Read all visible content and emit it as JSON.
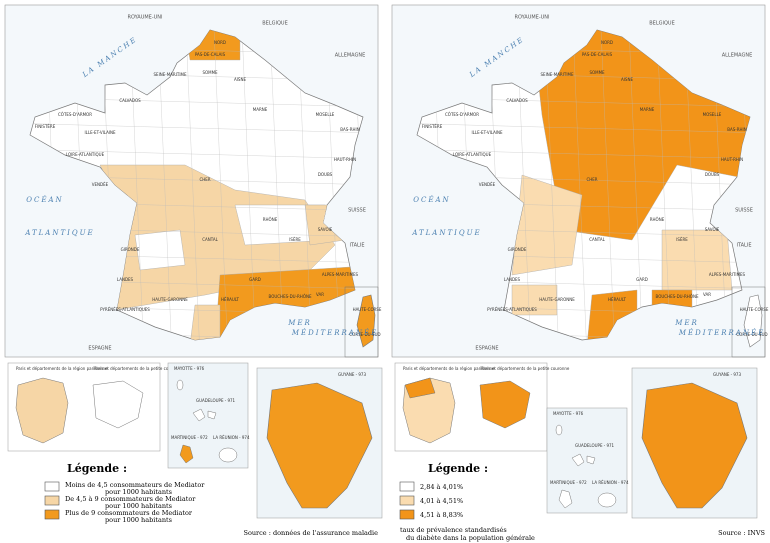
{
  "countries": {
    "uk": "ROYAUME-UNI",
    "be": "BELGIQUE",
    "de": "ALLEMAGNE",
    "ch": "SUISSE",
    "it": "ITALIE",
    "es": "ESPAGNE"
  },
  "seas": {
    "manche": "LA MANCHE",
    "ocean1": "OCÉAN",
    "ocean2": "ATLANTIQUE",
    "mer1": "MER",
    "mer2": "MÉDITERRANÉE"
  },
  "departments": [
    "NORD",
    "PAS-DE-CALAIS",
    "SOMME",
    "SEINE-MARITIME",
    "CALVADOS",
    "FINISTÈRE",
    "CÔTES-D'ARMOR",
    "ILLE-ET-VILAINE",
    "LOIRE-ATLANTIQUE",
    "VENDÉE",
    "GIRONDE",
    "LANDES",
    "PYRÉNÉES-ATLANTIQUES",
    "HAUTE-GARONNE",
    "HÉRAULT",
    "GARD",
    "BOUCHES-DU-RHÔNE",
    "VAR",
    "ALPES-MARITIMES",
    "RHÔNE",
    "ISÈRE",
    "SAVOIE",
    "DOUBS",
    "BAS-RHIN",
    "HAUT-RHIN",
    "MOSELLE",
    "MARNE",
    "AISNE",
    "CHER",
    "CANTAL",
    "HAUTE-CORSE",
    "CORSE-DU-SUD"
  ],
  "insets": {
    "paris_left": "Paris et départements de la région parisienne",
    "paris_right": "Paris et départements de la petite couronne",
    "guyane": "GUYANE - 973",
    "mayotte": "MAYOTTE - 976",
    "guadeloupe": "GUADELOUPE - 971",
    "martinique": "MARTINIQUE - 972",
    "reunion": "LA RÉUNION - 974"
  },
  "panels": [
    {
      "legend_title": "Légende :",
      "legend": [
        {
          "label": "Moins de 4,5 consommateurs de Mediator pour 1000 habitants",
          "color": "#ffffff"
        },
        {
          "label": "De 4,5 à 9 consommateurs de Mediator pour 1000 habitants",
          "color": "#f6d6a6"
        },
        {
          "label": "Plus de 9 consommateurs de Mediator pour 1000 habitants",
          "color": "#f29a1e"
        }
      ],
      "source": "Source : données de l'assurance maladie"
    },
    {
      "legend_title": "Légende :",
      "legend": [
        {
          "label": "2,84 à 4,01%",
          "color": "#ffffff"
        },
        {
          "label": "4,01 à 4,51%",
          "color": "#fadcb0"
        },
        {
          "label": "4,51 à 8,83%",
          "color": "#f29419"
        }
      ],
      "caption": "taux de prévalence standardisés du diabète dans la population générale",
      "source": "Source : INVS"
    }
  ]
}
